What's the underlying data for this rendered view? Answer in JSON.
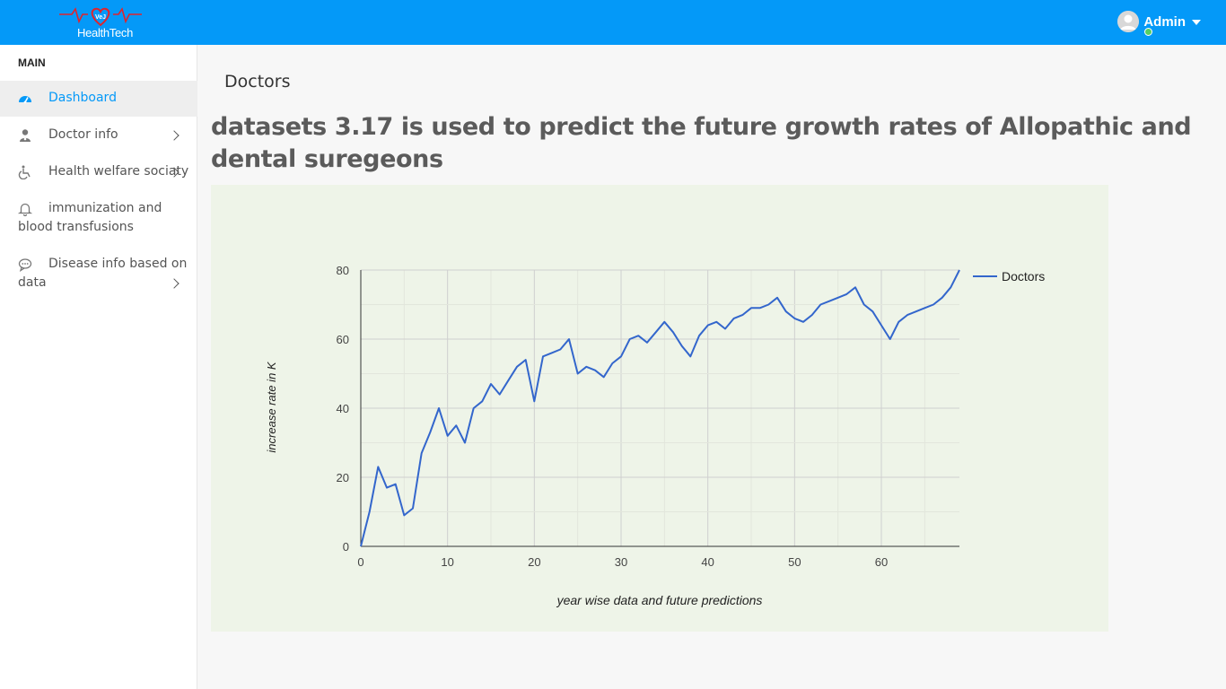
{
  "app": {
    "logo_text": "HealthTech",
    "logo_badge": "VeJ",
    "accent_color": "#0499f8"
  },
  "header": {
    "user_name": "Admin",
    "user_status_color": "#55ce63"
  },
  "sidebar": {
    "section_title": "MAIN",
    "items": [
      {
        "label": "Dashboard",
        "icon": "dashboard-gauge-icon",
        "active": true
      },
      {
        "label": "Doctor info",
        "icon": "doctor-user-icon",
        "has_submenu": true
      },
      {
        "label": "Health welfare sociaty",
        "icon": "wheelchair-icon",
        "has_submenu": true
      },
      {
        "label": "immunization and",
        "label_line2": "blood transfusions",
        "icon": "bell-icon"
      },
      {
        "label": "Disease info based on",
        "label_line2": "data",
        "icon": "chat-bubble-icon",
        "has_submenu": true
      }
    ]
  },
  "main": {
    "page_title": "Doctors",
    "heading": "datasets 3.17 is used to predict the future growth rates of Allopathic and dental suregeons"
  },
  "chart_data": {
    "type": "line",
    "title": "",
    "xlabel": "year wise data and future predictions",
    "ylabel": "increase rate in K",
    "xlim": [
      0,
      69
    ],
    "ylim": [
      0,
      80
    ],
    "x_ticks": [
      0,
      10,
      20,
      30,
      40,
      50,
      60
    ],
    "y_ticks": [
      0,
      20,
      40,
      60,
      80
    ],
    "legend_position": "right",
    "grid": true,
    "series": [
      {
        "name": "Doctors",
        "color": "#3366cc",
        "x": [
          0,
          1,
          2,
          3,
          4,
          5,
          6,
          7,
          8,
          9,
          10,
          11,
          12,
          13,
          14,
          15,
          16,
          17,
          18,
          19,
          20,
          21,
          22,
          23,
          24,
          25,
          26,
          27,
          28,
          29,
          30,
          31,
          32,
          33,
          34,
          35,
          36,
          37,
          38,
          39,
          40,
          41,
          42,
          43,
          44,
          45,
          46,
          47,
          48,
          49,
          50,
          51,
          52,
          53,
          54,
          55,
          56,
          57,
          58,
          59,
          60,
          61,
          62,
          63,
          64,
          65,
          66,
          67,
          68,
          69
        ],
        "values": [
          0,
          10,
          23,
          17,
          18,
          9,
          11,
          27,
          33,
          40,
          32,
          35,
          30,
          40,
          42,
          47,
          44,
          48,
          52,
          54,
          42,
          55,
          56,
          57,
          60,
          50,
          52,
          51,
          49,
          53,
          55,
          60,
          61,
          59,
          62,
          65,
          62,
          58,
          55,
          61,
          64,
          65,
          63,
          66,
          67,
          69,
          69,
          70,
          72,
          68,
          66,
          65,
          67,
          70,
          71,
          72,
          73,
          75,
          70,
          68,
          64,
          60,
          65,
          67,
          68,
          69,
          70,
          72,
          75,
          80
        ]
      }
    ]
  }
}
